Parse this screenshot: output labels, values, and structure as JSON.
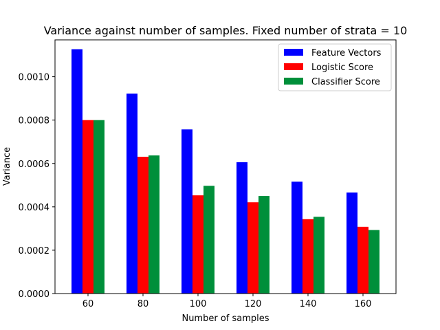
{
  "chart_data": {
    "type": "bar",
    "title": "Variance against number of samples. Fixed number of strata = 10",
    "xlabel": "Number of samples",
    "ylabel": "Variance",
    "categories": [
      "60",
      "80",
      "100",
      "120",
      "140",
      "160"
    ],
    "ylim": [
      0,
      0.00117
    ],
    "yticks": [
      "0.0000",
      "0.0002",
      "0.0004",
      "0.0006",
      "0.0008",
      "0.0010"
    ],
    "grid": false,
    "legend_position": "top-right",
    "series": [
      {
        "name": "Feature Vectors",
        "color": "#0000ff",
        "values": [
          0.001127,
          0.000922,
          0.000757,
          0.000606,
          0.000516,
          0.000466
        ]
      },
      {
        "name": "Logistic Score",
        "color": "#ff0000",
        "values": [
          0.0008,
          0.000631,
          0.000453,
          0.000421,
          0.000343,
          0.000308
        ]
      },
      {
        "name": "Classifier Score",
        "color": "#008f3a",
        "values": [
          0.0008,
          0.000637,
          0.000497,
          0.00045,
          0.000354,
          0.000293
        ]
      }
    ]
  }
}
